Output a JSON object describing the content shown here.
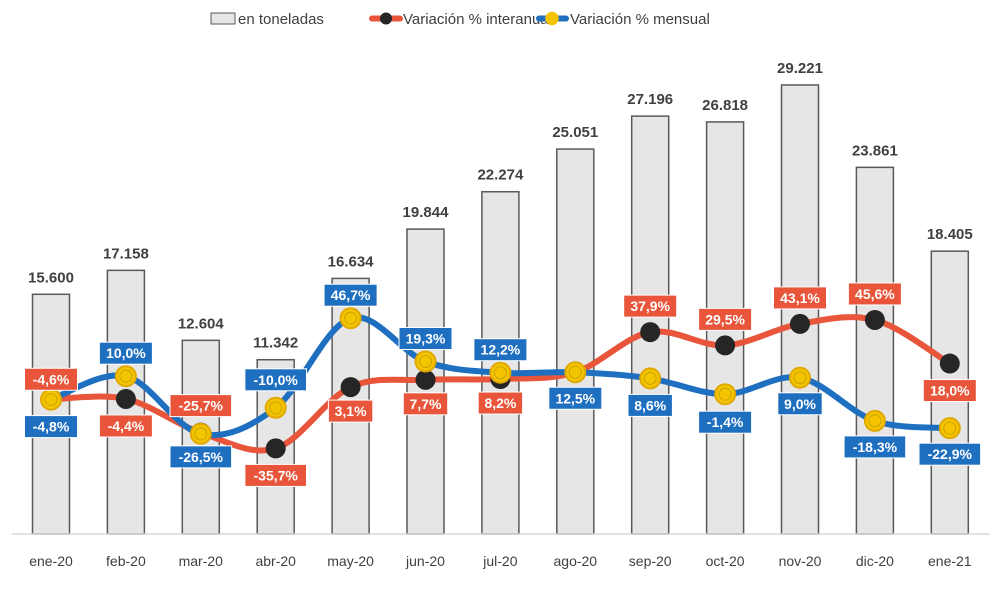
{
  "chart_data": {
    "type": "bar",
    "title": "",
    "xlabel": "",
    "ylabel": "",
    "grid": false,
    "legend_position": "top",
    "categories": [
      "ene-20",
      "feb-20",
      "mar-20",
      "abr-20",
      "may-20",
      "jun-20",
      "jul-20",
      "ago-20",
      "sep-20",
      "oct-20",
      "nov-20",
      "dic-20",
      "ene-21"
    ],
    "series": [
      {
        "name": "en toneladas",
        "kind": "bar",
        "color": "#e6e6e6",
        "values": [
          15600,
          17158,
          12604,
          11342,
          16634,
          19844,
          22274,
          25051,
          27196,
          26818,
          29221,
          23861,
          18405
        ],
        "labels": [
          "15.600",
          "17.158",
          "12.604",
          "11.342",
          "16.634",
          "19.844",
          "22.274",
          "25.051",
          "27.196",
          "26.818",
          "29.221",
          "23.861",
          "18.405"
        ]
      },
      {
        "name": "Variación % interanual",
        "kind": "line",
        "color": "#e8553a",
        "marker_color": "#262626",
        "values": [
          -4.6,
          -4.4,
          -25.7,
          -35.7,
          3.1,
          7.7,
          8.2,
          12.5,
          37.9,
          29.5,
          43.1,
          45.6,
          18.0
        ],
        "labels": [
          "-4,6%",
          "-4,4%",
          "-25,7%",
          "-35,7%",
          "3,1%",
          "7,7%",
          "8,2%",
          "12,5%",
          "37,9%",
          "29,5%",
          "43,1%",
          "45,6%",
          "18,0%"
        ]
      },
      {
        "name": "Variación % mensual",
        "kind": "line",
        "color": "#1f6fc1",
        "marker_color": "#f5c400",
        "values": [
          -4.8,
          10.0,
          -26.5,
          -10.0,
          46.7,
          19.3,
          12.2,
          12.5,
          8.6,
          -1.4,
          9.0,
          -18.3,
          -22.9
        ],
        "labels": [
          "-4,8%",
          "10,0%",
          "-26,5%",
          "-10,0%",
          "46,7%",
          "19,3%",
          "12,2%",
          "12,5%",
          "8,6%",
          "-1,4%",
          "9,0%",
          "-18,3%",
          "-22,9%"
        ]
      }
    ],
    "ylim_bars": [
      0,
      30000
    ]
  }
}
